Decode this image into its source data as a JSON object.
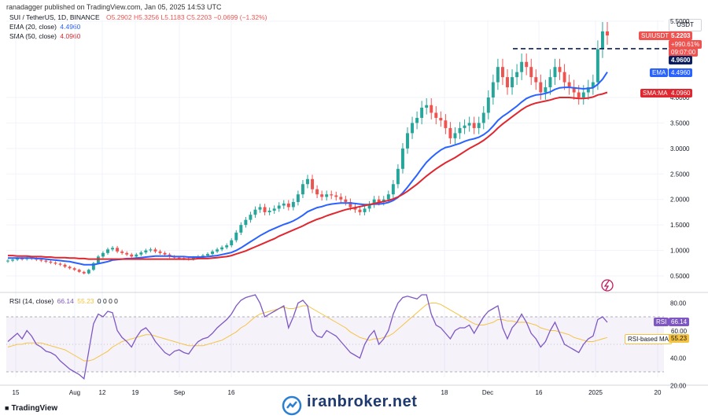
{
  "header": {
    "published": "ranadagger published on TradingView.com, Jan 05, 2025 14:53 UTC"
  },
  "legend": {
    "symbol": "SUI / TetherUS, 1D, BINANCE",
    "ohlc": "O5.2902 H5.3256 L5.1183 C5.2203 −0.0699 (−1.32%)",
    "ema_label": "EMA (20, close)",
    "ema_value": "4.4960",
    "sma_label": "SMA (50, close)",
    "sma_value": "4.0960",
    "rsi_label": "RSI (14, close)",
    "rsi_value": "66.14",
    "rsi_ma": "55.23",
    "rsi_extra": "0 0 0 0"
  },
  "tags": {
    "currency": "USDT",
    "symbol_tag": "SUIUSDT",
    "price": "5.2203",
    "pct": "+990.61%",
    "countdown": "09:07:00",
    "level": "4.9600",
    "ema": "EMA",
    "ema_val": "4.4960",
    "sma": "SMA:MA",
    "sma_val": "4.0960",
    "rsi": "RSI",
    "rsi_val": "66.14",
    "rsi_ma_label": "RSI-based MA",
    "rsi_ma_val": "55.23",
    "rsi_sixty": "60.00"
  },
  "footer": {
    "tv": "TradingView",
    "watermark": "iranbroker.net"
  },
  "colors": {
    "up": "#26a69a",
    "down": "#ef5350",
    "ema": "#2962ff",
    "sma": "#e0272f",
    "rsi": "#7e57c2",
    "rsi_ma": "#f5c342"
  },
  "chart_data": [
    {
      "type": "candlestick",
      "title": "SUI / TetherUS, 1D, BINANCE",
      "y_ticks": [
        0.5,
        1.0,
        1.5,
        2.0,
        2.5,
        3.0,
        3.5,
        4.0,
        5.5
      ],
      "y_tick_labels": [
        "0.5000",
        "1.0000",
        "1.5000",
        "2.0000",
        "2.5000",
        "3.0000",
        "3.5000",
        "4.0000",
        "5.5000"
      ],
      "x_tick_labels": [
        "15",
        "Aug",
        "12",
        "19",
        "Sep",
        "16",
        "18",
        "Dec",
        "16",
        "2025",
        "20"
      ],
      "resistance_level": 4.96,
      "close": [
        0.8,
        0.82,
        0.84,
        0.83,
        0.85,
        0.84,
        0.82,
        0.8,
        0.78,
        0.76,
        0.74,
        0.72,
        0.68,
        0.65,
        0.62,
        0.58,
        0.55,
        0.62,
        0.75,
        0.88,
        0.95,
        1.02,
        1.05,
        0.98,
        0.95,
        0.92,
        0.88,
        0.92,
        0.96,
        1.0,
        1.02,
        0.98,
        0.95,
        0.92,
        0.88,
        0.86,
        0.85,
        0.84,
        0.83,
        0.86,
        0.88,
        0.9,
        0.93,
        0.98,
        1.02,
        1.06,
        1.1,
        1.2,
        1.35,
        1.5,
        1.6,
        1.7,
        1.8,
        1.85,
        1.75,
        1.78,
        1.82,
        1.88,
        1.92,
        1.85,
        1.95,
        2.1,
        2.3,
        2.4,
        2.2,
        2.1,
        2.05,
        2.1,
        2.08,
        2.05,
        2.0,
        1.95,
        1.85,
        1.8,
        1.75,
        1.82,
        1.9,
        2.0,
        1.95,
        2.0,
        2.1,
        2.3,
        2.6,
        3.0,
        3.3,
        3.5,
        3.6,
        3.8,
        3.85,
        3.7,
        3.6,
        3.55,
        3.4,
        3.2,
        3.3,
        3.4,
        3.45,
        3.5,
        3.4,
        3.5,
        3.7,
        4.0,
        4.3,
        4.6,
        4.4,
        4.2,
        4.4,
        4.5,
        4.7,
        4.6,
        4.4,
        4.3,
        4.1,
        4.2,
        4.4,
        4.6,
        4.5,
        4.3,
        4.2,
        4.1,
        4.0,
        4.1,
        4.2,
        4.3,
        4.95,
        5.3,
        5.22
      ],
      "ema20": [
        0.85,
        0.85,
        0.85,
        0.85,
        0.85,
        0.85,
        0.84,
        0.84,
        0.83,
        0.82,
        0.81,
        0.8,
        0.79,
        0.78,
        0.76,
        0.74,
        0.72,
        0.72,
        0.72,
        0.74,
        0.76,
        0.78,
        0.81,
        0.82,
        0.83,
        0.84,
        0.84,
        0.85,
        0.86,
        0.87,
        0.88,
        0.89,
        0.89,
        0.89,
        0.89,
        0.88,
        0.88,
        0.88,
        0.87,
        0.87,
        0.87,
        0.87,
        0.88,
        0.89,
        0.9,
        0.92,
        0.94,
        0.96,
        1.0,
        1.05,
        1.11,
        1.17,
        1.23,
        1.29,
        1.34,
        1.39,
        1.43,
        1.47,
        1.51,
        1.54,
        1.58,
        1.63,
        1.69,
        1.76,
        1.8,
        1.84,
        1.86,
        1.89,
        1.91,
        1.92,
        1.93,
        1.93,
        1.93,
        1.92,
        1.91,
        1.9,
        1.9,
        1.91,
        1.91,
        1.92,
        1.94,
        1.98,
        2.04,
        2.13,
        2.24,
        2.36,
        2.48,
        2.61,
        2.73,
        2.82,
        2.9,
        2.97,
        3.02,
        3.04,
        3.07,
        3.1,
        3.14,
        3.17,
        3.19,
        3.22,
        3.27,
        3.34,
        3.44,
        3.55,
        3.63,
        3.69,
        3.76,
        3.83,
        3.91,
        3.98,
        4.02,
        4.05,
        4.06,
        4.08,
        4.11,
        4.16,
        4.19,
        4.2,
        4.2,
        4.19,
        4.18,
        4.17,
        4.18,
        4.19,
        4.26,
        4.36,
        4.5
      ],
      "sma50": [
        0.9,
        0.9,
        0.89,
        0.89,
        0.89,
        0.88,
        0.88,
        0.88,
        0.87,
        0.87,
        0.86,
        0.86,
        0.86,
        0.85,
        0.85,
        0.84,
        0.84,
        0.83,
        0.83,
        0.83,
        0.83,
        0.83,
        0.83,
        0.83,
        0.83,
        0.83,
        0.83,
        0.83,
        0.83,
        0.83,
        0.83,
        0.83,
        0.83,
        0.83,
        0.83,
        0.83,
        0.83,
        0.83,
        0.83,
        0.83,
        0.84,
        0.84,
        0.84,
        0.85,
        0.86,
        0.87,
        0.88,
        0.9,
        0.93,
        0.96,
        0.99,
        1.03,
        1.07,
        1.11,
        1.15,
        1.19,
        1.23,
        1.28,
        1.32,
        1.36,
        1.4,
        1.44,
        1.48,
        1.53,
        1.57,
        1.61,
        1.64,
        1.68,
        1.71,
        1.74,
        1.77,
        1.8,
        1.82,
        1.84,
        1.86,
        1.88,
        1.9,
        1.92,
        1.94,
        1.96,
        1.98,
        2.01,
        2.05,
        2.1,
        2.16,
        2.23,
        2.3,
        2.38,
        2.46,
        2.53,
        2.6,
        2.66,
        2.72,
        2.77,
        2.82,
        2.88,
        2.94,
        3.0,
        3.05,
        3.1,
        3.16,
        3.23,
        3.31,
        3.4,
        3.48,
        3.55,
        3.62,
        3.69,
        3.76,
        3.82,
        3.86,
        3.89,
        3.91,
        3.93,
        3.95,
        3.98,
        4.0,
        4.0,
        4.0,
        3.99,
        3.98,
        3.98,
        3.99,
        4.01,
        4.05,
        4.07,
        4.1
      ]
    },
    {
      "type": "line",
      "title": "RSI (14, close)",
      "y_ticks": [
        20,
        40,
        60,
        80
      ],
      "y_tick_labels": [
        "20.00",
        "40.00",
        "60.00",
        "80.00"
      ],
      "bands": [
        30,
        70
      ],
      "rsi": [
        52,
        55,
        58,
        54,
        60,
        56,
        50,
        48,
        45,
        44,
        42,
        38,
        35,
        32,
        30,
        28,
        25,
        45,
        65,
        72,
        70,
        74,
        73,
        60,
        55,
        52,
        48,
        55,
        60,
        62,
        58,
        52,
        48,
        44,
        42,
        45,
        46,
        44,
        43,
        48,
        52,
        54,
        55,
        58,
        62,
        65,
        68,
        72,
        78,
        82,
        84,
        85,
        86,
        80,
        70,
        72,
        74,
        76,
        78,
        62,
        70,
        80,
        82,
        78,
        60,
        56,
        55,
        60,
        58,
        56,
        52,
        48,
        44,
        42,
        40,
        50,
        56,
        60,
        50,
        54,
        60,
        72,
        80,
        84,
        85,
        84,
        83,
        86,
        86,
        72,
        64,
        62,
        58,
        54,
        60,
        62,
        62,
        64,
        58,
        64,
        70,
        74,
        76,
        78,
        62,
        54,
        62,
        66,
        72,
        66,
        58,
        54,
        48,
        52,
        60,
        66,
        58,
        50,
        48,
        46,
        44,
        50,
        54,
        56,
        68,
        70,
        66
      ],
      "rsi_ma": [
        48,
        49,
        50,
        50,
        51,
        51,
        51,
        51,
        50,
        49,
        48,
        47,
        46,
        44,
        42,
        40,
        38,
        38,
        39,
        41,
        43,
        45,
        48,
        50,
        52,
        53,
        54,
        55,
        56,
        57,
        57,
        56,
        55,
        54,
        53,
        52,
        51,
        50,
        49,
        49,
        49,
        49,
        50,
        51,
        52,
        53,
        55,
        57,
        59,
        62,
        64,
        67,
        70,
        72,
        73,
        74,
        75,
        76,
        77,
        76,
        76,
        77,
        78,
        78,
        76,
        74,
        72,
        70,
        68,
        66,
        64,
        62,
        59,
        57,
        55,
        54,
        53,
        54,
        54,
        55,
        56,
        58,
        61,
        64,
        67,
        70,
        73,
        76,
        79,
        80,
        80,
        79,
        77,
        75,
        73,
        71,
        69,
        67,
        65,
        64,
        64,
        65,
        66,
        68,
        68,
        67,
        67,
        66,
        66,
        66,
        65,
        64,
        62,
        61,
        60,
        60,
        59,
        58,
        57,
        55,
        54,
        53,
        52,
        52,
        53,
        54,
        55
      ]
    }
  ]
}
